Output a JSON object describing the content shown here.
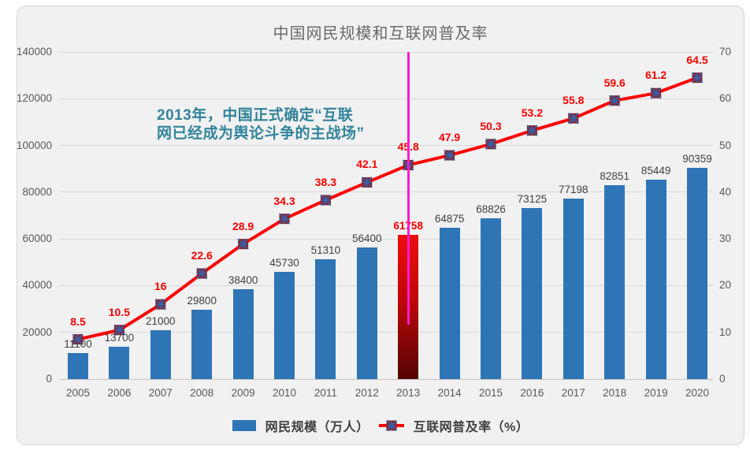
{
  "chart": {
    "title": "中国网民规模和互联网普及率",
    "annotation": {
      "line1": "2013年，中国正式确定“互联",
      "line2": "网已经成为舆论斗争的主战场”",
      "color": "#31849B"
    },
    "legend": [
      {
        "label": "网民规模（万人）",
        "type": "bar"
      },
      {
        "label": "互联网普及率（%）",
        "type": "line"
      }
    ]
  },
  "chart_data": {
    "type": "bar+line",
    "title": "中国网民规模和互联网普及率",
    "categories": [
      "2005",
      "2006",
      "2007",
      "2008",
      "2009",
      "2010",
      "2011",
      "2012",
      "2013",
      "2014",
      "2015",
      "2016",
      "2017",
      "2018",
      "2019",
      "2020"
    ],
    "series": [
      {
        "name": "网民规模（万人）",
        "type": "bar",
        "axis": "left",
        "color": "#2E75B6",
        "label_color": "#404040",
        "values": [
          11100,
          13700,
          21000,
          29800,
          38400,
          45730,
          51310,
          56400,
          61758,
          64875,
          68826,
          73125,
          77198,
          82851,
          85449,
          90359
        ],
        "highlight": {
          "index": 8,
          "category": "2013",
          "label_color": "#FF0000",
          "gradient": [
            "#ED0E0E",
            "#C00808",
            "#7E0606",
            "#560202"
          ]
        }
      },
      {
        "name": "互联网普及率（%）",
        "type": "line",
        "axis": "right",
        "color": "#FE0000",
        "label_color": "#FF0000",
        "values": [
          8.5,
          10.5,
          16,
          22.6,
          28.9,
          34.3,
          38.3,
          42.1,
          45.8,
          47.9,
          50.3,
          53.2,
          55.8,
          59.6,
          61.2,
          64.5
        ],
        "marker": {
          "shape": "square-asterisk",
          "fill": "#8A2020",
          "glyph": "#3A5FA8"
        }
      }
    ],
    "left_axis": {
      "range": [
        0,
        140000
      ],
      "ticks": [
        0,
        20000,
        40000,
        60000,
        80000,
        100000,
        120000,
        140000
      ]
    },
    "right_axis": {
      "range": [
        0,
        70
      ],
      "ticks": [
        0,
        10,
        20,
        30,
        40,
        50,
        60,
        70
      ]
    },
    "vline": {
      "category": "2013",
      "color": "#FF1CCB"
    },
    "grid": true,
    "legend_position": "bottom"
  }
}
